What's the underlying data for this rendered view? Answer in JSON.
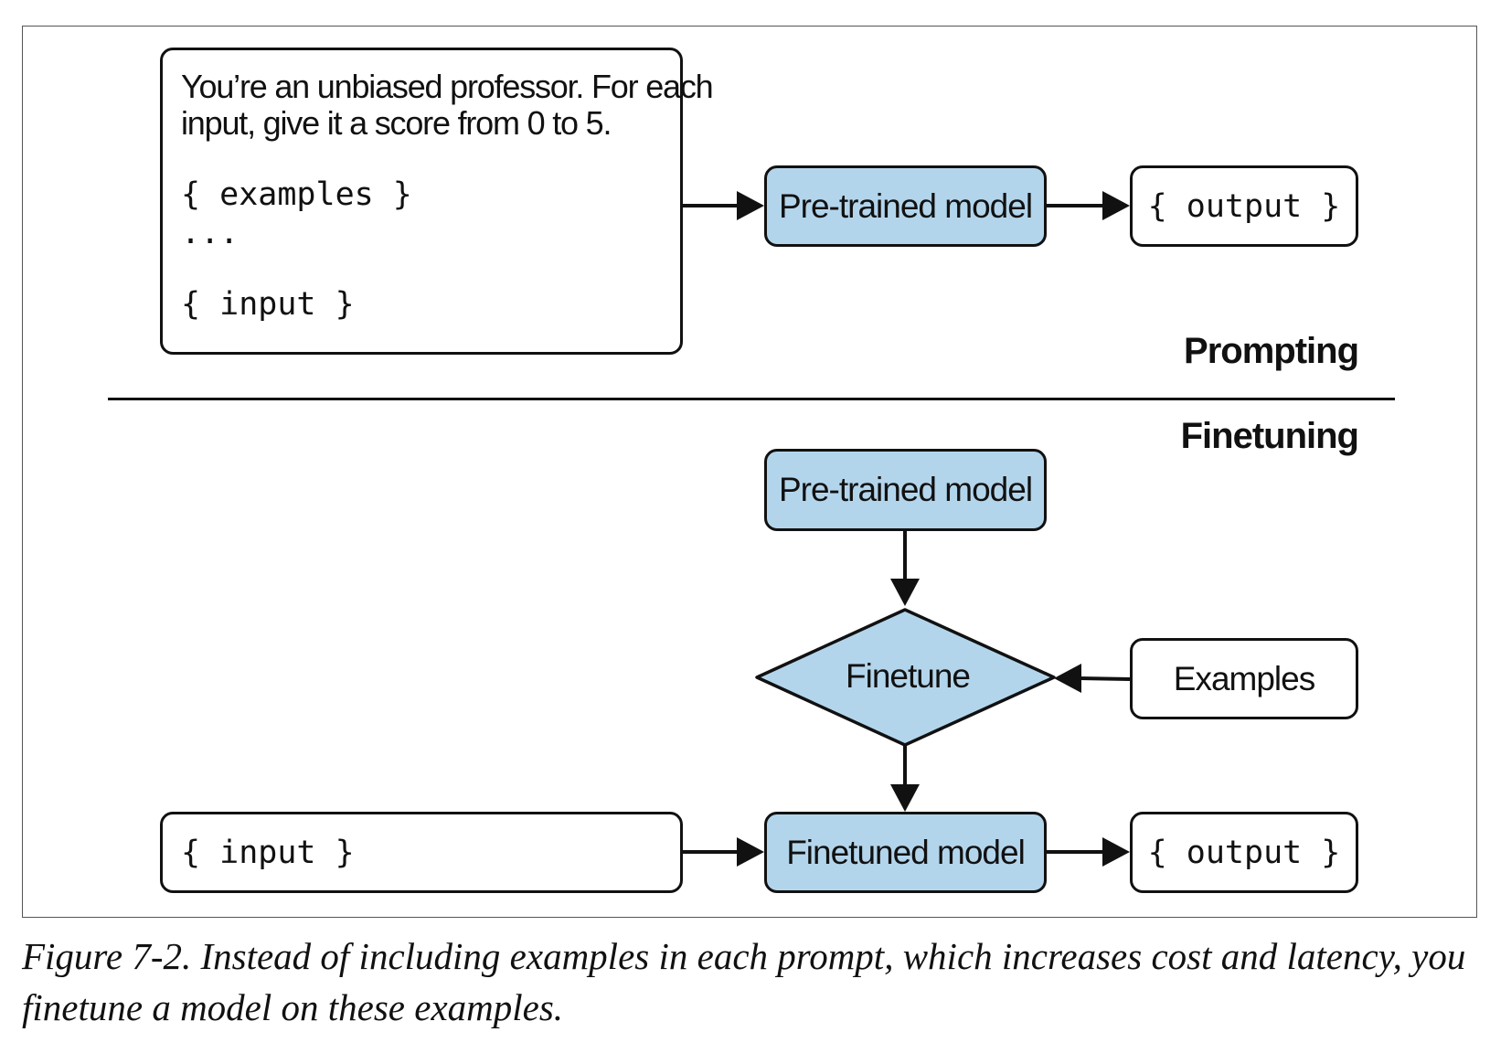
{
  "prompting": {
    "section_title": "Prompting",
    "prompt_box": {
      "line1": "You’re an unbiased professor. For each",
      "line2": "input, give it a score from 0 to 5.",
      "examples_placeholder": "{ examples }",
      "ellipsis": "...",
      "input_placeholder": "{ input }"
    },
    "model_label": "Pre-trained model",
    "output_label": "{ output }"
  },
  "finetuning": {
    "section_title": "Finetuning",
    "pretrained_label": "Pre-trained model",
    "finetune_label": "Finetune",
    "examples_label": "Examples",
    "input_label": "{ input }",
    "finetuned_label": "Finetuned model",
    "output_label": "{ output }"
  },
  "colors": {
    "model_fill": "#b3d5ec",
    "stroke": "#111111",
    "background": "#ffffff"
  },
  "caption": "Figure 7-2. Instead of including examples in each prompt, which increases cost and latency, you finetune a model on these examples."
}
